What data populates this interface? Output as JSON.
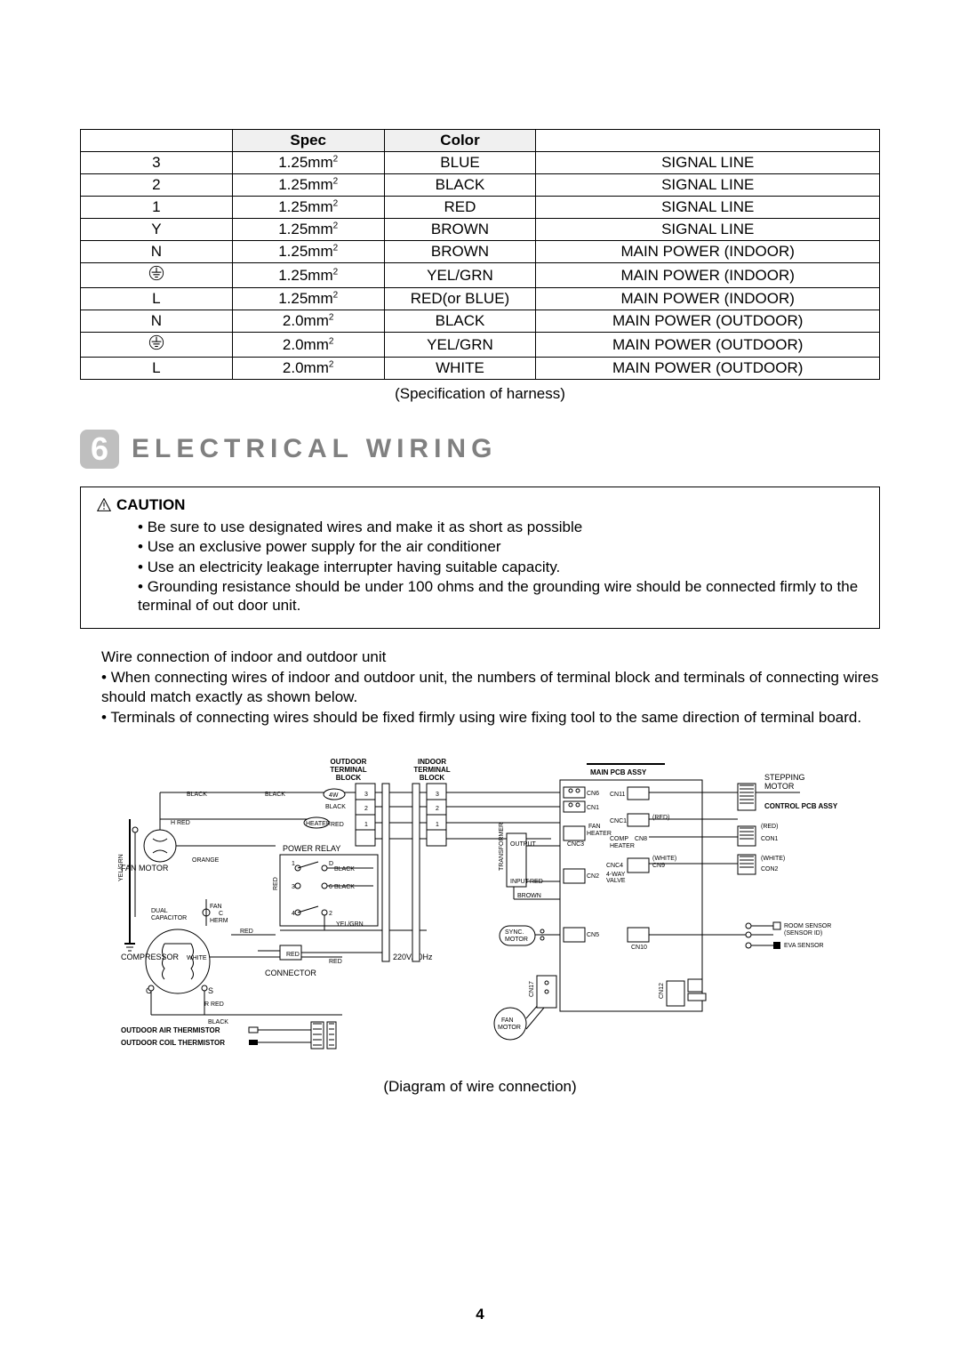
{
  "table": {
    "headers": [
      "",
      "Spec",
      "Color",
      ""
    ],
    "rows": [
      {
        "terminal": "3",
        "spec": "1.25mm",
        "sup": "2",
        "color": "BLUE",
        "desc": "SIGNAL LINE"
      },
      {
        "terminal": "2",
        "spec": "1.25mm",
        "sup": "2",
        "color": "BLACK",
        "desc": "SIGNAL LINE"
      },
      {
        "terminal": "1",
        "spec": "1.25mm",
        "sup": "2",
        "color": "RED",
        "desc": "SIGNAL LINE"
      },
      {
        "terminal": "Y",
        "spec": "1.25mm",
        "sup": "2",
        "color": "BROWN",
        "desc": "SIGNAL LINE"
      },
      {
        "terminal": "N",
        "spec": "1.25mm",
        "sup": "2",
        "color": "BROWN",
        "desc": "MAIN POWER (INDOOR)"
      },
      {
        "terminal": "GND",
        "spec": "1.25mm",
        "sup": "2",
        "color": "YEL/GRN",
        "desc": "MAIN POWER (INDOOR)"
      },
      {
        "terminal": "L",
        "spec": "1.25mm",
        "sup": "2",
        "color": "RED(or BLUE)",
        "desc": "MAIN POWER (INDOOR)"
      },
      {
        "terminal": "N",
        "spec": "2.0mm",
        "sup": "2",
        "color": "BLACK",
        "desc": "MAIN POWER (OUTDOOR)"
      },
      {
        "terminal": "GND",
        "spec": "2.0mm",
        "sup": "2",
        "color": "YEL/GRN",
        "desc": "MAIN POWER (OUTDOOR)"
      },
      {
        "terminal": "L",
        "spec": "2.0mm",
        "sup": "2",
        "color": "WHITE",
        "desc": "MAIN POWER (OUTDOOR)"
      }
    ],
    "caption": "(Specification of harness)"
  },
  "section": {
    "number": "6",
    "title": "ELECTRICAL WIRING"
  },
  "caution": {
    "title": "CAUTION",
    "items": [
      "Be sure to use designated wires and make it as short as possible",
      "Use an exclusive power supply for the air conditioner",
      "Use an electricity leakage interrupter having suitable capacity.",
      "Grounding resistance should be under 100 ohms and the grounding wire should be connected firmly to the terminal of out door unit."
    ]
  },
  "wire_conn": {
    "title": "Wire connection of indoor and outdoor unit",
    "items": [
      "When connecting wires of indoor and outdoor unit, the numbers of terminal block and terminals of connecting wires should match exactly as shown below.",
      "Terminals of connecting wires should be fixed firmly using wire fixing tool to the same direction of terminal board."
    ]
  },
  "diagram": {
    "caption": "(Diagram of wire connection)",
    "labels": {
      "outdoor_block": "OUTDOOR\nTERMINAL\nBLOCK",
      "indoor_block": "INDOOR\nTERMINAL\nBLOCK",
      "main_pcb": "MAIN PCB ASSY",
      "stepping_motor": "STEPPING\nMOTOR",
      "control_pcb": "CONTROL PCB ASSY",
      "fan_motor_out": "FAN MOTOR",
      "dual_capacitor": "DUAL\nCAPACITOR",
      "compressor": "COMPRESSOR",
      "power_relay": "POWER RELAY",
      "connector": "CONNECTOR",
      "voltage": "220V/50Hz",
      "transformer": "TRANSFORMER",
      "sync_motor": "SYNC.\nMOTOR",
      "fan_motor_in": "FAN\nMOTOR",
      "outdoor_air_th": "OUTDOOR AIR THERMISTOR",
      "outdoor_coil_th": "OUTDOOR COIL THERMISTOR",
      "room_sensor": "ROOM SENSOR\n(SENSOR ID)",
      "eva_sensor": "EVA SENSOR",
      "connectors": [
        "CN6",
        "CN1",
        "CNC3",
        "CN2",
        "CN5",
        "CN17",
        "CN11",
        "CNC1",
        "CN8",
        "CNC4",
        "CN9",
        "CN10",
        "CN12",
        "CON1",
        "CON2"
      ],
      "wire_colors": [
        "BLACK",
        "RED",
        "ORANGE",
        "YEL/GRN",
        "WHITE",
        "R RED",
        "H RED",
        "BROWN"
      ],
      "relay_wires": [
        "4W",
        "HEATER"
      ],
      "misc": [
        "FAN",
        "COMP",
        "4-WAY\nVALVE",
        "OUTPUT",
        "INPUT",
        "(RED)",
        "(WHITE)",
        "FAN\nHEATER",
        "C",
        "S",
        "1",
        "2",
        "3",
        "4",
        "5",
        "6"
      ]
    },
    "colors": {
      "line": "#000000",
      "text": "#000000",
      "background": "#ffffff"
    }
  },
  "page_number": "4"
}
